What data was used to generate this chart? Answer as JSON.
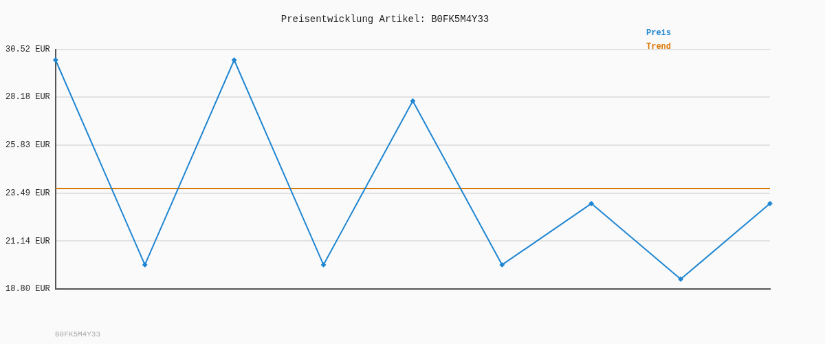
{
  "chart_data": {
    "type": "line",
    "title": "Preisentwicklung Artikel: B0FK5M4Y33",
    "categories": [
      null,
      null,
      null,
      null,
      null,
      null,
      null,
      null,
      null
    ],
    "series": [
      {
        "name": "Preis",
        "color": "#1f86d1",
        "values": [
          30.0,
          19.98,
          30.0,
          19.98,
          28.0,
          19.98,
          22.98,
          19.28,
          22.98
        ],
        "marker": "diamond"
      },
      {
        "name": "Trend",
        "color": "#d97706",
        "values": [
          23.71,
          23.71,
          23.71,
          23.71,
          23.71,
          23.71,
          23.71,
          23.71,
          23.71
        ],
        "marker": "none"
      }
    ],
    "ylim": [
      18.8,
      30.52
    ],
    "yticks": [
      {
        "value": 18.8,
        "label": "18.80 EUR"
      },
      {
        "value": 21.14,
        "label": "21.14 EUR"
      },
      {
        "value": 23.49,
        "label": "23.49 EUR"
      },
      {
        "value": 25.83,
        "label": "25.83 EUR"
      },
      {
        "value": 28.18,
        "label": "28.18 EUR"
      },
      {
        "value": 30.52,
        "label": "30.52 EUR"
      }
    ],
    "grid": "y",
    "legend": "top right",
    "tick_labels": "y",
    "line_style": "solid",
    "annotations": [
      "B0FK5M4Y33"
    ]
  }
}
